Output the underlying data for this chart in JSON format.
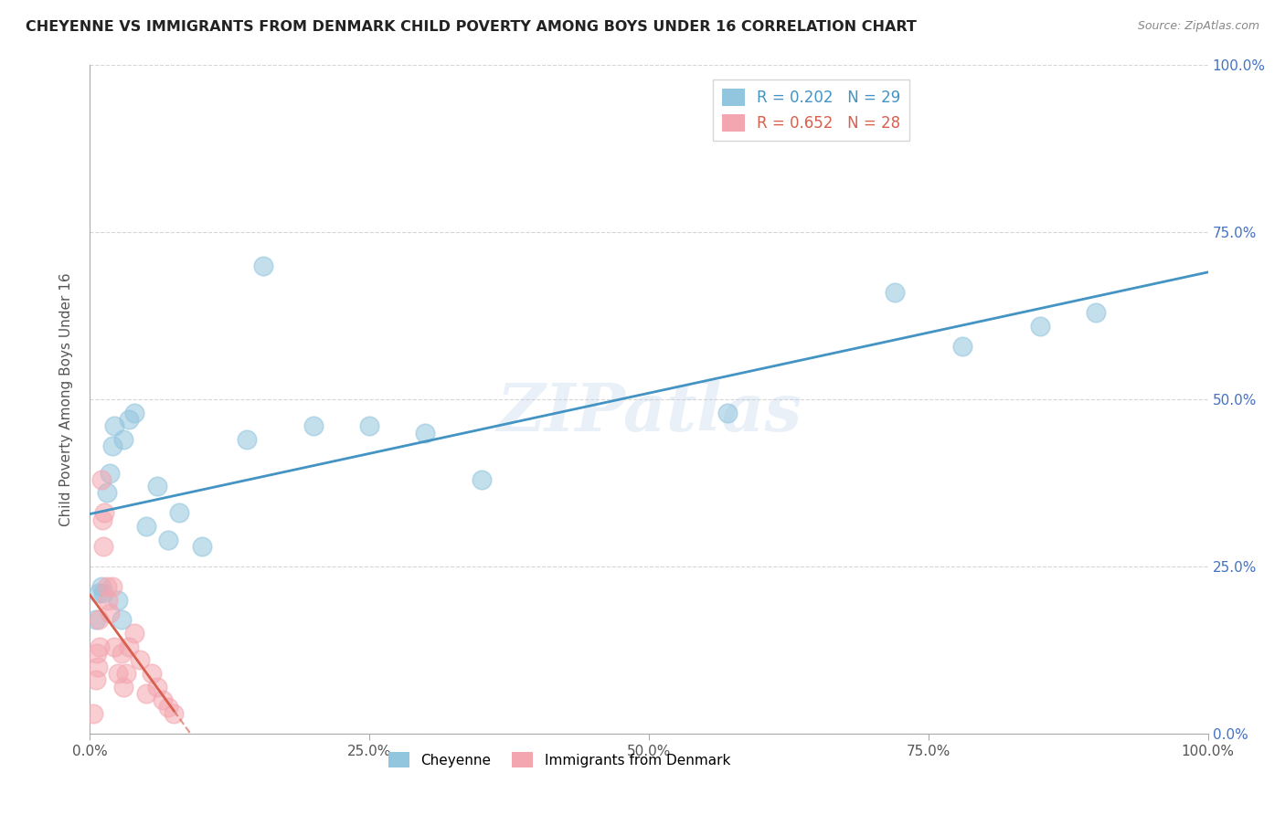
{
  "title": "CHEYENNE VS IMMIGRANTS FROM DENMARK CHILD POVERTY AMONG BOYS UNDER 16 CORRELATION CHART",
  "source": "Source: ZipAtlas.com",
  "ylabel": "Child Poverty Among Boys Under 16",
  "cheyenne_R": 0.202,
  "cheyenne_N": 29,
  "denmark_R": 0.652,
  "denmark_N": 28,
  "cheyenne_color": "#92c5de",
  "denmark_color": "#f4a6b0",
  "cheyenne_line_color": "#4393c3",
  "denmark_line_color": "#d6604d",
  "watermark": "ZIPatlas",
  "cheyenne_x": [
    0.5,
    0.8,
    1.0,
    1.2,
    1.5,
    1.8,
    2.0,
    2.2,
    2.5,
    2.8,
    3.0,
    3.5,
    4.0,
    5.0,
    6.0,
    7.0,
    8.0,
    10.0,
    14.0,
    15.5,
    20.0,
    25.0,
    30.0,
    35.0,
    57.0,
    72.0,
    78.0,
    85.0,
    90.0
  ],
  "cheyenne_y": [
    17.0,
    21.0,
    22.0,
    21.0,
    36.0,
    39.0,
    43.0,
    46.0,
    20.0,
    17.0,
    44.0,
    47.0,
    48.0,
    31.0,
    37.0,
    29.0,
    33.0,
    28.0,
    44.0,
    70.0,
    46.0,
    46.0,
    45.0,
    38.0,
    48.0,
    66.0,
    58.0,
    61.0,
    63.0
  ],
  "denmark_x": [
    0.3,
    0.5,
    0.6,
    0.7,
    0.8,
    0.9,
    1.0,
    1.1,
    1.2,
    1.3,
    1.5,
    1.6,
    1.8,
    2.0,
    2.2,
    2.5,
    2.8,
    3.0,
    3.2,
    3.5,
    4.0,
    4.5,
    5.0,
    5.5,
    6.0,
    6.5,
    7.0,
    7.5
  ],
  "denmark_y": [
    3.0,
    8.0,
    12.0,
    10.0,
    17.0,
    13.0,
    38.0,
    32.0,
    28.0,
    33.0,
    22.0,
    20.0,
    18.0,
    22.0,
    13.0,
    9.0,
    12.0,
    7.0,
    9.0,
    13.0,
    15.0,
    11.0,
    6.0,
    9.0,
    7.0,
    5.0,
    4.0,
    3.0
  ],
  "xlim": [
    0,
    100
  ],
  "ylim": [
    0,
    100
  ],
  "ytick_vals": [
    0,
    25,
    50,
    75,
    100
  ],
  "xtick_vals": [
    0,
    25,
    50,
    75,
    100
  ]
}
